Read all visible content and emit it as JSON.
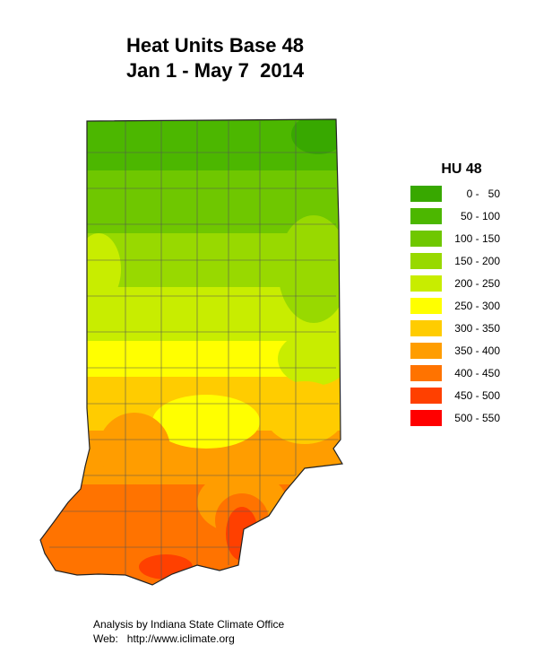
{
  "header": {
    "title": "Heat Units Base 48",
    "subtitle": "Jan 1 - May 7  2014"
  },
  "legend": {
    "title": "HU 48",
    "items": [
      {
        "label": "0 -   50",
        "color": "#38a800"
      },
      {
        "label": "50 - 100",
        "color": "#4cb700"
      },
      {
        "label": "100 - 150",
        "color": "#6fc700"
      },
      {
        "label": "150 - 200",
        "color": "#98d900"
      },
      {
        "label": "200 - 250",
        "color": "#c8ed00"
      },
      {
        "label": "250 - 300",
        "color": "#ffff00"
      },
      {
        "label": "300 - 350",
        "color": "#ffcc00"
      },
      {
        "label": "350 - 400",
        "color": "#ff9d00"
      },
      {
        "label": "400 - 450",
        "color": "#ff7300"
      },
      {
        "label": "450 - 500",
        "color": "#ff4000"
      },
      {
        "label": "500 - 550",
        "color": "#ff0000"
      }
    ]
  },
  "footer": {
    "line1": "Analysis by Indiana State Climate Office",
    "line2": "Web:   http://www.iclimate.org"
  }
}
